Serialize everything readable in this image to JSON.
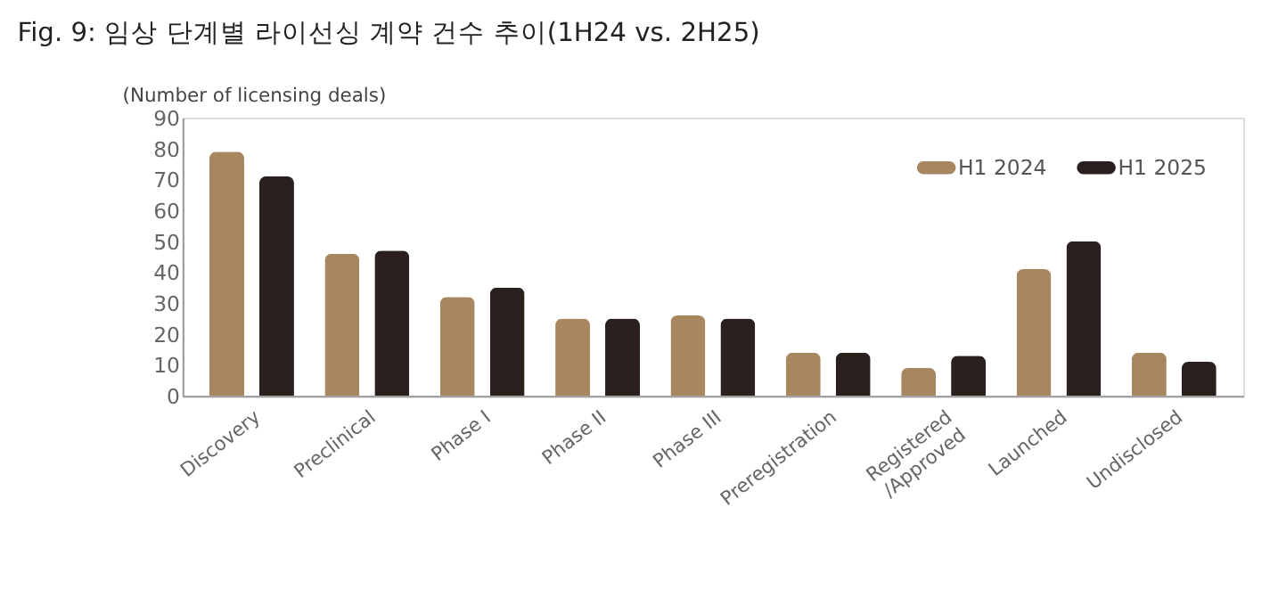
{
  "chart_data": {
    "type": "bar",
    "title": "Fig. 9:    임상 단계별 라이선싱 계약 건수 추이(1H24 vs. 2H25)",
    "ylabel": "(Number of licensing deals)",
    "categories": [
      "Discovery",
      "Preclinical",
      "Phase I",
      "Phase II",
      "Phase III",
      "Preregistration",
      "Registered\n/Approved",
      "Launched",
      "Undisclosed"
    ],
    "series": [
      {
        "name": "H1 2024",
        "color": "#a8865f",
        "values": [
          79,
          46,
          32,
          25,
          26,
          14,
          9,
          41,
          14
        ]
      },
      {
        "name": "H1 2025",
        "color": "#2a211f",
        "values": [
          71,
          47,
          35,
          25,
          25,
          14,
          13,
          50,
          11
        ]
      }
    ],
    "ylim": [
      0,
      90
    ],
    "yticks": [
      0,
      10,
      20,
      30,
      40,
      50,
      60,
      70,
      80,
      90
    ],
    "grid": false,
    "legend": "top right"
  }
}
